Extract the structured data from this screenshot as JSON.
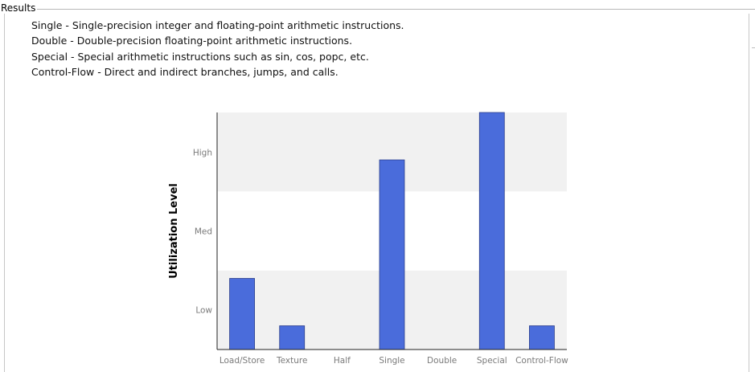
{
  "results_title": "Results",
  "descriptions": [
    "Single - Single-precision integer and floating-point arithmetic instructions.",
    "Double - Double-precision floating-point arithmetic instructions.",
    "Special - Special arithmetic instructions such as sin, cos, popc, etc.",
    "Control-Flow - Direct and indirect branches, jumps, and calls."
  ],
  "colors": {
    "bar": "#4a6cdb",
    "band": "#f1f1f1"
  },
  "chart_data": {
    "type": "bar",
    "categories": [
      "Load/Store",
      "Texture",
      "Half",
      "Single",
      "Double",
      "Special",
      "Control-Flow"
    ],
    "values": [
      3,
      1,
      0,
      8,
      0,
      10,
      1
    ],
    "ylim": [
      0,
      10
    ],
    "ylabel": "Utilization Level",
    "y_ticks": [
      {
        "label": "Low",
        "value": 1.67
      },
      {
        "label": "Med",
        "value": 5
      },
      {
        "label": "High",
        "value": 8.33
      }
    ],
    "bands": [
      [
        0,
        3.33
      ],
      [
        6.67,
        10
      ]
    ],
    "grid": false,
    "legend": "none"
  }
}
